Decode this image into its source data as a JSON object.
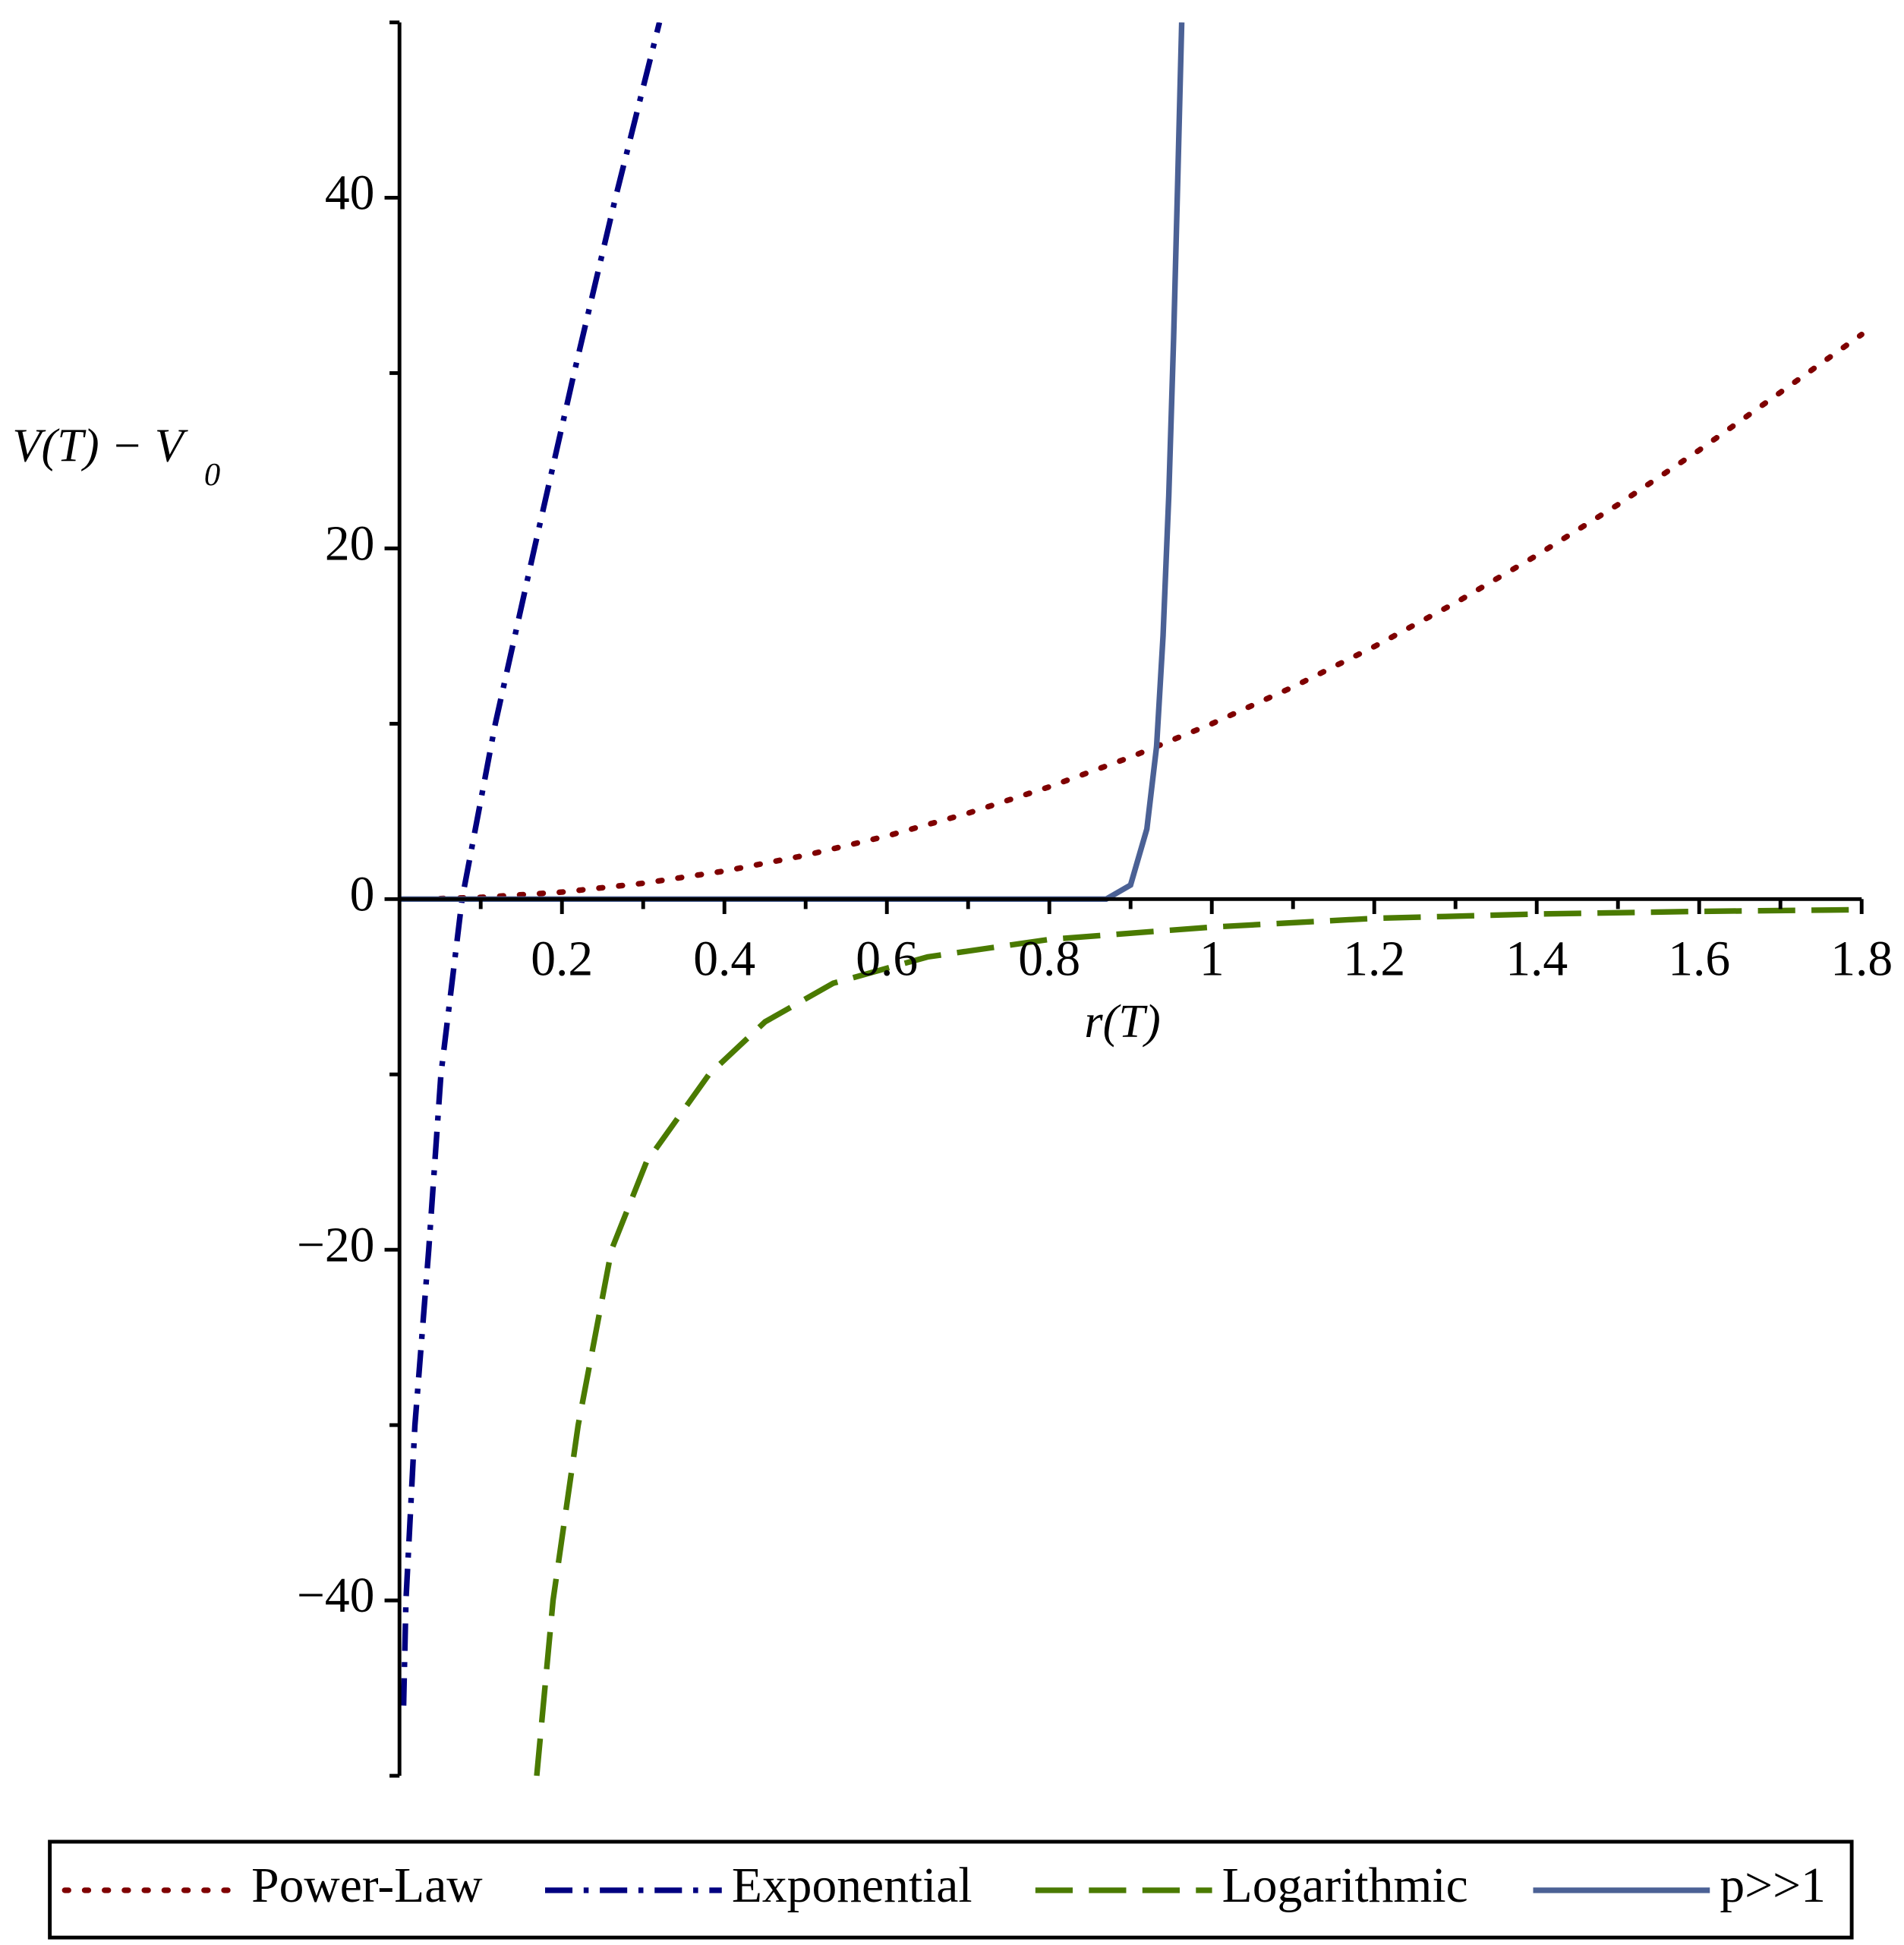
{
  "chart_data": {
    "type": "line",
    "x_label": "r(T)",
    "y_label": {
      "main": "V(T) − V",
      "sub": "0"
    },
    "xlim": [
      0,
      1.8
    ],
    "ylim": [
      -50,
      50
    ],
    "xticks": [
      0.2,
      0.4,
      0.6,
      0.8,
      1,
      1.2,
      1.4,
      1.6,
      1.8
    ],
    "xminor_ticks": [
      0.1,
      0.3,
      0.5,
      0.7,
      0.9,
      1.1,
      1.3,
      1.5,
      1.7
    ],
    "yticks": [
      {
        "value": -40,
        "label": "−40"
      },
      {
        "value": -20,
        "label": "−20"
      },
      0,
      20,
      40
    ],
    "yminor_ticks": [
      -50,
      -30,
      -10,
      10,
      30,
      50
    ],
    "legend_position": "bottom",
    "series": [
      {
        "name": "Power-Law",
        "color": "#7f0000",
        "style": "dotted",
        "x": [
          0.05,
          0.1,
          0.2,
          0.3,
          0.4,
          0.5,
          0.6,
          0.7,
          0.8,
          0.9,
          1.0,
          1.1,
          1.2,
          1.3,
          1.4,
          1.5,
          1.6,
          1.7,
          1.8
        ],
        "values": [
          0.03,
          0.1,
          0.4,
          0.9,
          1.6,
          2.5,
          3.6,
          4.9,
          6.4,
          8.1,
          10,
          12.1,
          14.4,
          16.9,
          19.6,
          22.5,
          25.6,
          28.9,
          32.2
        ]
      },
      {
        "name": "Exponential",
        "color": "#000080",
        "style": "dashdot",
        "x": [
          0.005,
          0.008,
          0.019,
          0.036,
          0.051,
          0.077,
          0.118,
          0.166,
          0.215,
          0.266,
          0.32
        ],
        "values": [
          -46,
          -40,
          -30,
          -20,
          -10,
          0,
          10,
          20,
          30,
          40,
          50
        ]
      },
      {
        "name": "Logarithmic",
        "color": "#4a7a00",
        "style": "dashed",
        "x": [
          0.169,
          0.189,
          0.22,
          0.261,
          0.304,
          0.381,
          0.45,
          0.534,
          0.65,
          0.8,
          1.0,
          1.2,
          1.4,
          1.6,
          1.8
        ],
        "values": [
          -50,
          -40,
          -30,
          -20,
          -15,
          -10,
          -7,
          -4.8,
          -3.3,
          -2.3,
          -1.6,
          -1.1,
          -0.85,
          -0.7,
          -0.6
        ]
      },
      {
        "name": "p>>1",
        "color": "#4b6195",
        "style": "solid",
        "x": [
          0,
          0.4,
          0.8,
          0.87,
          0.9,
          0.92,
          0.932,
          0.94,
          0.947,
          0.953,
          0.958,
          0.963
        ],
        "values": [
          0,
          0,
          0,
          0,
          0.8,
          4,
          8.7,
          15,
          23,
          32,
          41,
          50
        ]
      }
    ]
  }
}
